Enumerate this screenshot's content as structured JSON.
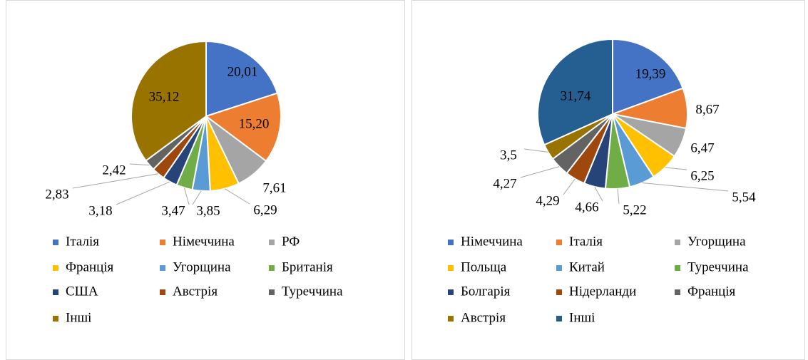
{
  "chart_data": [
    {
      "type": "pie",
      "categories": [
        "Італія",
        "Німеччина",
        "РФ",
        "Франція",
        "Угорщина",
        "Британія",
        "США",
        "Австрія",
        "Туреччина",
        "Інші"
      ],
      "values": [
        20.01,
        15.2,
        7.61,
        6.29,
        3.85,
        3.47,
        3.18,
        2.83,
        2.42,
        35.12
      ],
      "value_labels": [
        "20,01",
        "15,20",
        "7,61",
        "6,29",
        "3,85",
        "3,47",
        "3,18",
        "2,83",
        "2,42",
        "35,12"
      ],
      "colors": [
        "#4472c4",
        "#ed7d31",
        "#a5a5a5",
        "#ffc000",
        "#5b9bd5",
        "#70ad47",
        "#264478",
        "#9e480e",
        "#636363",
        "#997300"
      ]
    },
    {
      "type": "pie",
      "categories": [
        "Німеччина",
        "Італія",
        "Угорщина",
        "Польща",
        "Китай",
        "Туреччина",
        "Болгарія",
        "Нідерланди",
        "Франція",
        "Австрія",
        "Інші"
      ],
      "values": [
        19.39,
        8.67,
        6.47,
        6.25,
        5.54,
        5.22,
        4.66,
        4.29,
        4.27,
        3.5,
        31.74
      ],
      "value_labels": [
        "19,39",
        "8,67",
        "6,47",
        "6,25",
        "5,54",
        "5,22",
        "4,66",
        "4,29",
        "4,27",
        "3,5",
        "31,74"
      ],
      "colors": [
        "#4472c4",
        "#ed7d31",
        "#a5a5a5",
        "#ffc000",
        "#5b9bd5",
        "#70ad47",
        "#264478",
        "#9e480e",
        "#636363",
        "#997300",
        "#255e91"
      ]
    }
  ]
}
